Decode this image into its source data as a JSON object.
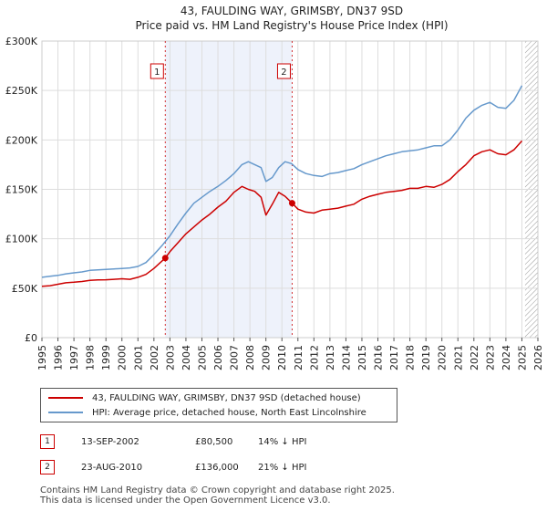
{
  "chart_data": {
    "type": "line",
    "title": "43, FAULDING WAY, GRIMSBY, DN37 9SD",
    "subtitle": "Price paid vs. HM Land Registry's House Price Index (HPI)",
    "xlim": [
      1995,
      2026
    ],
    "ylim": [
      0,
      300000
    ],
    "y_ticks": [
      0,
      50000,
      100000,
      150000,
      200000,
      250000,
      300000
    ],
    "y_tick_labels": [
      "£0",
      "£50K",
      "£100K",
      "£150K",
      "£200K",
      "£250K",
      "£300K"
    ],
    "x_ticks": [
      1995,
      1996,
      1997,
      1998,
      1999,
      2000,
      2001,
      2002,
      2003,
      2004,
      2005,
      2006,
      2007,
      2008,
      2009,
      2010,
      2011,
      2012,
      2013,
      2014,
      2015,
      2016,
      2017,
      2018,
      2019,
      2020,
      2021,
      2022,
      2023,
      2024,
      2025,
      2026
    ],
    "x_tick_labels": [
      "1995",
      "1996",
      "1997",
      "1998",
      "1999",
      "2000",
      "2001",
      "2002",
      "2003",
      "2004",
      "2005",
      "2006",
      "2007",
      "2008",
      "2009",
      "2010",
      "2011",
      "2012",
      "2013",
      "2014",
      "2015",
      "2016",
      "2017",
      "2018",
      "2019",
      "2020",
      "2021",
      "2022",
      "2023",
      "2024",
      "2025",
      "2026"
    ],
    "grid": true,
    "colors": {
      "price": "#cc0000",
      "hpi": "#6699cc",
      "shade": "#eef2fb",
      "grid": "#dddddd",
      "hatch": "#999999"
    },
    "series": [
      {
        "name": "43, FAULDING WAY, GRIMSBY, DN37 9SD (detached house)",
        "color": "#cc0000",
        "x": [
          1995,
          1995.5,
          1996,
          1996.5,
          1997,
          1997.5,
          1998,
          1998.5,
          1999,
          1999.5,
          2000,
          2000.5,
          2001,
          2001.5,
          2002,
          2002.4,
          2002.71,
          2003,
          2003.5,
          2004,
          2004.5,
          2005,
          2005.5,
          2006,
          2006.5,
          2007,
          2007.5,
          2007.9,
          2008.3,
          2008.7,
          2009,
          2009.4,
          2009.8,
          2010.2,
          2010.64,
          2011,
          2011.5,
          2012,
          2012.5,
          2013,
          2013.5,
          2014,
          2014.5,
          2015,
          2015.5,
          2016,
          2016.5,
          2017,
          2017.5,
          2018,
          2018.5,
          2019,
          2019.5,
          2020,
          2020.5,
          2021,
          2021.5,
          2022,
          2022.5,
          2023,
          2023.5,
          2024,
          2024.5,
          2025
        ],
        "values": [
          52000,
          52500,
          54000,
          55500,
          56000,
          56800,
          58000,
          58300,
          58500,
          59000,
          59500,
          59000,
          61000,
          64000,
          70000,
          76000,
          80500,
          87000,
          96000,
          105000,
          112000,
          119000,
          125000,
          132000,
          138000,
          147000,
          153000,
          150000,
          148000,
          142000,
          124000,
          135000,
          147000,
          143000,
          136000,
          130000,
          127000,
          126000,
          129000,
          130000,
          131000,
          133000,
          135000,
          140000,
          143000,
          145000,
          147000,
          148000,
          149000,
          151000,
          151000,
          153000,
          152000,
          155000,
          160000,
          168000,
          175000,
          184000,
          188000,
          190000,
          186000,
          185000,
          190000,
          199000
        ]
      },
      {
        "name": "HPI: Average price, detached house, North East Lincolnshire",
        "color": "#6699cc",
        "x": [
          1995,
          1995.5,
          1996,
          1996.5,
          1997,
          1997.5,
          1998,
          1998.5,
          1999,
          1999.5,
          2000,
          2000.5,
          2001,
          2001.5,
          2002,
          2002.5,
          2003,
          2003.5,
          2004,
          2004.5,
          2005,
          2005.5,
          2006,
          2006.5,
          2007,
          2007.5,
          2007.9,
          2008.3,
          2008.7,
          2009,
          2009.4,
          2009.8,
          2010.2,
          2010.6,
          2011,
          2011.5,
          2012,
          2012.5,
          2013,
          2013.5,
          2014,
          2014.5,
          2015,
          2015.5,
          2016,
          2016.5,
          2017,
          2017.5,
          2018,
          2018.5,
          2019,
          2019.5,
          2020,
          2020.5,
          2021,
          2021.5,
          2022,
          2022.5,
          2023,
          2023.5,
          2024,
          2024.5,
          2025
        ],
        "values": [
          61000,
          62000,
          63000,
          64500,
          65500,
          66500,
          68000,
          68500,
          69000,
          69500,
          70000,
          70500,
          72000,
          76000,
          84000,
          93000,
          103000,
          115000,
          126000,
          136000,
          142000,
          148000,
          153000,
          159000,
          166000,
          175000,
          178000,
          175000,
          172000,
          158000,
          162000,
          172000,
          178000,
          176000,
          170000,
          166000,
          164000,
          163000,
          166000,
          167000,
          169000,
          171000,
          175000,
          178000,
          181000,
          184000,
          186000,
          188000,
          189000,
          190000,
          192000,
          194000,
          194000,
          200000,
          210000,
          222000,
          230000,
          235000,
          238000,
          233000,
          232000,
          240000,
          255000
        ]
      }
    ],
    "sales": [
      {
        "label": "1",
        "x": 2002.71,
        "value": 80500
      },
      {
        "label": "2",
        "x": 2010.64,
        "value": 136000
      }
    ],
    "shaded_region": [
      2002.71,
      2010.64
    ],
    "hatch_from": 2025.2
  },
  "legend": {
    "price_label": "43, FAULDING WAY, GRIMSBY, DN37 9SD (detached house)",
    "hpi_label": "HPI: Average price, detached house, North East Lincolnshire"
  },
  "sales_table": [
    {
      "num": "1",
      "date": "13-SEP-2002",
      "price": "£80,500",
      "hpi": "14% ↓ HPI"
    },
    {
      "num": "2",
      "date": "23-AUG-2010",
      "price": "£136,000",
      "hpi": "21% ↓ HPI"
    }
  ],
  "footer": {
    "line1": "Contains HM Land Registry data © Crown copyright and database right 2025.",
    "line2": "This data is licensed under the Open Government Licence v3.0."
  }
}
